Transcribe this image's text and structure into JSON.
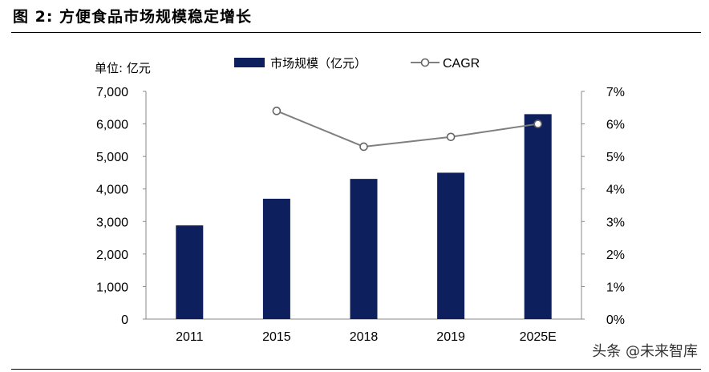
{
  "figure_title": "图 2:  方便食品市场规模稳定增长",
  "watermark": "头条 @未来智库",
  "chart_data": {
    "type": "bar",
    "unit_label": "单位:  亿元",
    "categories": [
      "2011",
      "2015",
      "2018",
      "2019",
      "2025E"
    ],
    "series": [
      {
        "name": "市场规模（亿元）",
        "type": "bar",
        "axis": "left",
        "color": "#0d1f5c",
        "values": [
          2880,
          3700,
          4310,
          4500,
          6300
        ]
      },
      {
        "name": "CAGR",
        "type": "line",
        "axis": "right",
        "color": "#7f7f7f",
        "values": [
          null,
          0.064,
          0.053,
          0.056,
          0.06
        ]
      }
    ],
    "left_axis": {
      "ylim": [
        0,
        7000
      ],
      "ticks": [
        "0",
        "1,000",
        "2,000",
        "3,000",
        "4,000",
        "5,000",
        "6,000",
        "7,000"
      ]
    },
    "right_axis": {
      "ylim": [
        0,
        0.07
      ],
      "ticks": [
        "0%",
        "1%",
        "2%",
        "3%",
        "4%",
        "5%",
        "6%",
        "7%"
      ]
    },
    "legend_position": "top",
    "grid": false
  }
}
